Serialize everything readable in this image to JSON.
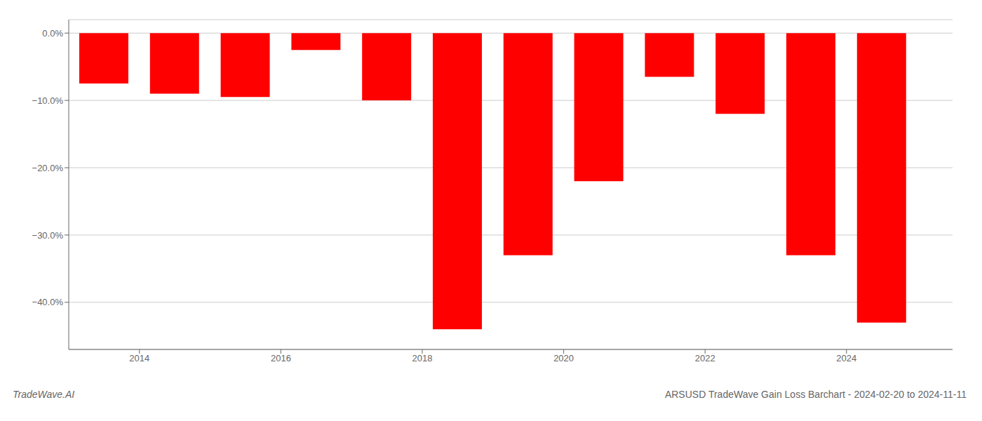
{
  "chart_data": {
    "type": "bar",
    "title": "ARSUSD TradeWave Gain Loss Barchart - 2024-02-20 to 2024-11-11",
    "annotations": [
      "TradeWave.AI"
    ],
    "x": [
      2013.5,
      2014.5,
      2015.5,
      2016.5,
      2017.5,
      2018.5,
      2019.5,
      2020.5,
      2021.5,
      2022.5,
      2023.5,
      2024.5
    ],
    "values": [
      -7.5,
      -9.0,
      -9.5,
      -2.5,
      -10.0,
      -44.0,
      -33.0,
      -22.0,
      -6.5,
      -12.0,
      -33.0,
      -43.0
    ],
    "color": "#ff0000",
    "xlim": [
      2013,
      2025.5
    ],
    "xticks": [
      2014,
      2016,
      2018,
      2020,
      2022,
      2024
    ],
    "ylim": [
      -47,
      2
    ],
    "yticks": [
      {
        "value": 0,
        "label": "0.0%"
      },
      {
        "value": -10,
        "label": "−10.0%"
      },
      {
        "value": -20,
        "label": "−20.0%"
      },
      {
        "value": -30,
        "label": "−30.0%"
      },
      {
        "value": -40,
        "label": "−40.0%"
      }
    ],
    "grid": true
  }
}
